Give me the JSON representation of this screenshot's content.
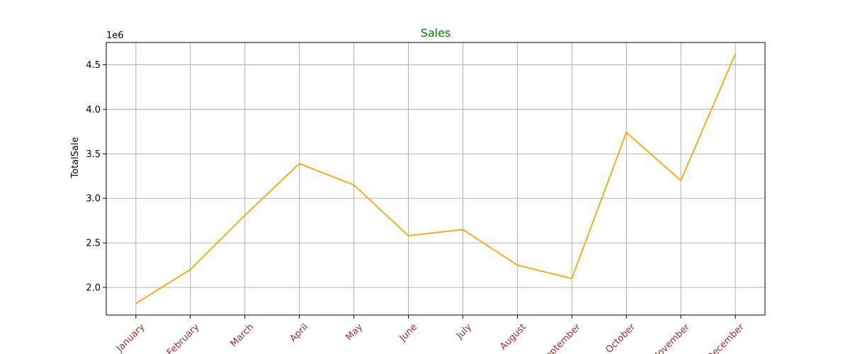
{
  "chart_data": {
    "type": "line",
    "title": "Sales",
    "title_color": "#008000",
    "xlabel": "",
    "ylabel": "TotalSale",
    "y_offset_label": "1e6",
    "categories": [
      "January",
      "February",
      "March",
      "April",
      "May",
      "June",
      "July",
      "August",
      "September",
      "October",
      "November",
      "December"
    ],
    "x_tick_color": "#a52a2a",
    "series": [
      {
        "values": [
          1.82,
          2.2,
          2.81,
          3.39,
          3.15,
          2.58,
          2.65,
          2.25,
          2.1,
          3.74,
          3.2,
          4.62
        ],
        "color": "#ffa500"
      }
    ],
    "yticks": [
      "2.0",
      "2.5",
      "3.0",
      "3.5",
      "4.0",
      "4.5"
    ],
    "ylim": [
      1.69,
      4.75
    ],
    "grid": true
  }
}
